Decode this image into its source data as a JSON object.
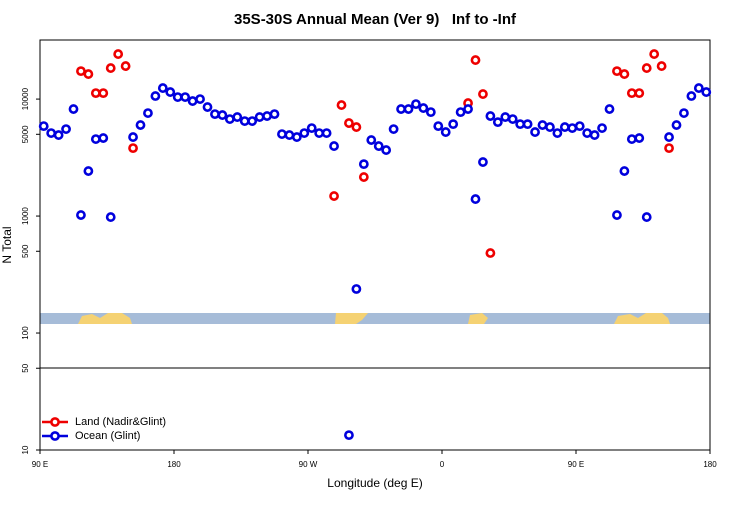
{
  "chart_data": {
    "type": "scatter",
    "title": "35S-30S Annual Mean (Ver 9)   Inf to -Inf",
    "x_label": "Longitude (deg E)",
    "y_label": "N Total",
    "yscale": "log",
    "xlim": [
      90,
      540
    ],
    "ylim": [
      10,
      32000
    ],
    "xticks": [
      {
        "value": 90,
        "label": "90 E"
      },
      {
        "value": 180,
        "label": "180"
      },
      {
        "value": 270,
        "label": "90 W"
      },
      {
        "value": 360,
        "label": "0"
      },
      {
        "value": 450,
        "label": "90 E"
      },
      {
        "value": 540,
        "label": "180"
      }
    ],
    "yticks": [
      10,
      50,
      100,
      500,
      1000,
      5000,
      10000
    ],
    "legend": "lower left",
    "series": [
      {
        "name": "Land (Nadir&Glint)",
        "color": "#ee0000",
        "x": [
          117.5,
          122.5,
          127.5,
          132.5,
          137.5,
          142.5,
          147.5,
          152.5,
          287.5,
          292.5,
          297.5,
          302.5,
          307.5,
          377.5,
          382.5,
          387.5,
          392.5,
          477.5,
          482.5,
          487.5,
          492.5,
          497.5,
          502.5,
          507.5,
          512.5
        ],
        "values": [
          17340,
          16360,
          11250,
          11250,
          18410,
          24260,
          19150,
          3810,
          1483,
          8890,
          6235,
          5765,
          2155,
          9245,
          21550,
          11040,
          483,
          17340,
          16360,
          11250,
          11250,
          18410,
          24260,
          19150,
          3810
        ]
      },
      {
        "name": "Ocean (Glint)",
        "color": "#0000dd",
        "x": [
          92.5,
          97.5,
          102.5,
          107.5,
          112.5,
          117.5,
          122.5,
          127.5,
          132.5,
          137.5,
          152.5,
          157.5,
          162.5,
          167.5,
          172.5,
          177.5,
          182.5,
          187.5,
          192.5,
          197.5,
          202.5,
          207.5,
          212.5,
          217.5,
          222.5,
          227.5,
          232.5,
          237.5,
          242.5,
          247.5,
          252.5,
          257.5,
          262.5,
          267.5,
          272.5,
          277.5,
          282.5,
          287.5,
          297.5,
          302.5,
          307.5,
          312.5,
          317.5,
          322.5,
          327.5,
          332.5,
          337.5,
          342.5,
          347.5,
          352.5,
          357.5,
          362.5,
          367.5,
          372.5,
          377.5,
          382.5,
          387.5,
          392.5,
          397.5,
          402.5,
          407.5,
          412.5,
          417.5,
          422.5,
          427.5,
          432.5,
          437.5,
          442.5,
          447.5,
          452.5,
          457.5,
          462.5,
          467.5,
          472.5,
          477.5,
          482.5,
          487.5,
          492.5,
          497.5,
          512.5,
          517.5,
          522.5,
          527.5,
          532.5,
          537.5
        ],
        "values": [
          5875,
          5120,
          4925,
          5540,
          8220,
          1020,
          2425,
          4550,
          4645,
          980,
          4735,
          6000,
          7590,
          10620,
          12420,
          11480,
          10400,
          10400,
          9615,
          10000,
          8550,
          7440,
          7300,
          6745,
          7020,
          6485,
          6485,
          7020,
          7160,
          7440,
          5020,
          4925,
          4735,
          5120,
          5650,
          5120,
          5120,
          3965,
          13.4,
          238,
          2780,
          4465,
          3965,
          3665,
          5540,
          8220,
          8220,
          9060,
          8380,
          7740,
          5875,
          5225,
          6110,
          7740,
          8220,
          1397,
          2895,
          7160,
          6355,
          7020,
          6745,
          6110,
          6110,
          5225,
          6000,
          5765,
          5120,
          5765,
          5650,
          5875,
          5120,
          4925,
          5650,
          8220,
          1020,
          2425,
          4550,
          4645,
          980,
          4735,
          6000,
          7590,
          10620,
          12420,
          11480
        ]
      }
    ]
  }
}
